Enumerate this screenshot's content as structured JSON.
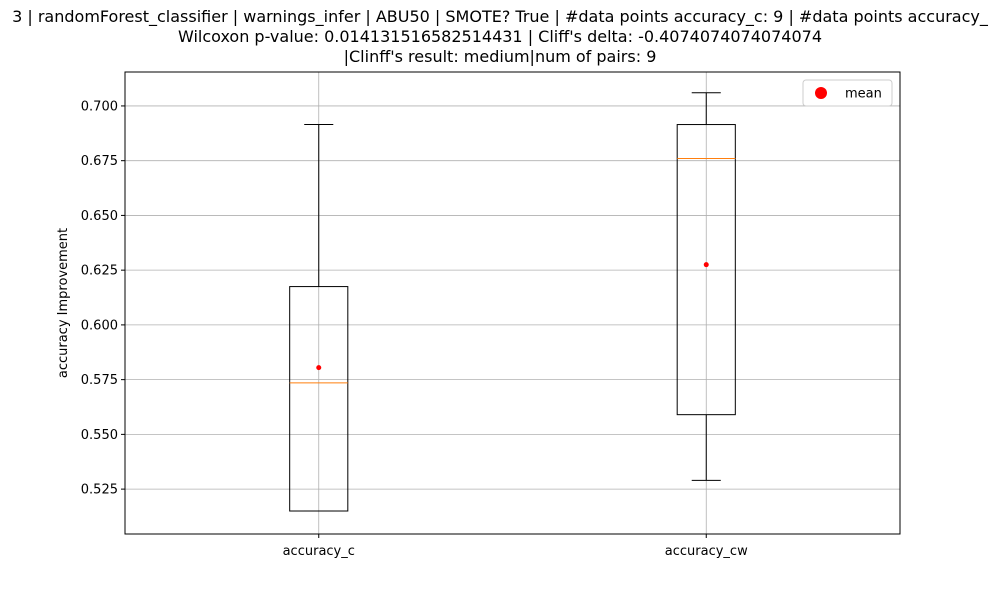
{
  "chart_data": {
    "type": "box",
    "title_lines": [
      "3 | randomForest_classifier | warnings_infer | ABU50 | SMOTE? True | #data points accuracy_c: 9 | #data points accuracy_",
      "Wilcoxon p-value: 0.014131516582514431 | Cliff's delta: -0.4074074074074074",
      "|Clinff's result: medium|num of pairs: 9"
    ],
    "xlabel": "",
    "ylabel": "accuracy Improvement",
    "ylim": [
      0.5045,
      0.7155
    ],
    "yticks": [
      0.525,
      0.55,
      0.575,
      0.6,
      0.625,
      0.65,
      0.675,
      0.7
    ],
    "ytick_labels": [
      "0.525",
      "0.550",
      "0.575",
      "0.600",
      "0.625",
      "0.650",
      "0.675",
      "0.700"
    ],
    "grid": true,
    "legend": {
      "placement": "top-right",
      "entries": [
        {
          "label": "mean",
          "color": "#ff0000"
        }
      ]
    },
    "colors": {
      "box": "#000000",
      "median": "#ff7f0e",
      "mean": "#ff0000",
      "grid": "#b0b0b0"
    },
    "boxes": [
      {
        "label": "accuracy_c",
        "whisker_low": 0.515,
        "q1": 0.515,
        "median": 0.5735,
        "q3": 0.6175,
        "whisker_high": 0.6915,
        "mean": 0.5805
      },
      {
        "label": "accuracy_cw",
        "whisker_low": 0.529,
        "q1": 0.559,
        "median": 0.676,
        "q3": 0.6915,
        "whisker_high": 0.706,
        "mean": 0.6275
      }
    ]
  }
}
